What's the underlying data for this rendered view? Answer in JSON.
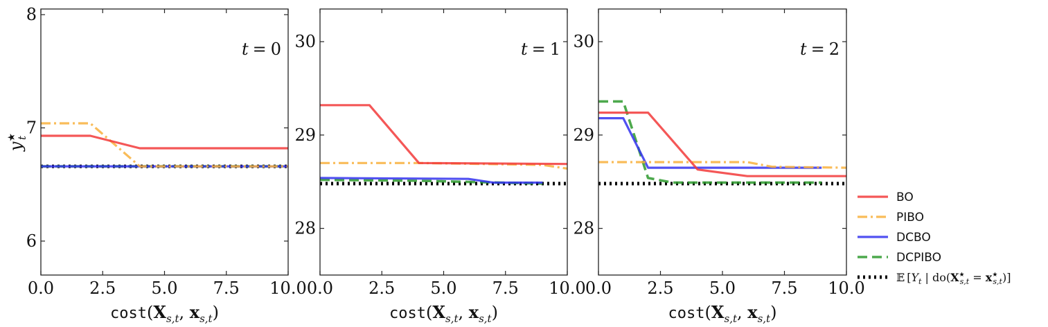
{
  "chart_data": [
    {
      "type": "line",
      "panel_label": "t = 0",
      "xlabel": "cost(X_{s,t}, x_{s,t})",
      "ylabel": "y*_t",
      "xlim": [
        0,
        10
      ],
      "ylim": [
        5.7,
        8.05
      ],
      "xticks": [
        "0.0",
        "2.5",
        "5.0",
        "7.5",
        "10.0"
      ],
      "yticks": [
        6,
        7,
        8
      ],
      "series": [
        {
          "name": "BO",
          "x": [
            0,
            2,
            4,
            10
          ],
          "y": [
            6.93,
            6.93,
            6.82,
            6.82
          ]
        },
        {
          "name": "PIBO",
          "x": [
            0,
            2,
            4,
            10
          ],
          "y": [
            7.04,
            7.04,
            6.66,
            6.66
          ]
        },
        {
          "name": "DCBO",
          "x": [
            0,
            10
          ],
          "y": [
            6.66,
            6.66
          ]
        },
        {
          "name": "DCPIBO",
          "x": [
            0,
            10
          ],
          "y": [
            6.66,
            6.66
          ]
        },
        {
          "name": "E[Y_t | do(X*_{s,t} = x*_{s,t})]",
          "x": [
            0,
            10
          ],
          "y": [
            6.66,
            6.66
          ]
        }
      ]
    },
    {
      "type": "line",
      "panel_label": "t = 1",
      "xlabel": "cost(X_{s,t}, x_{s,t})",
      "xlim": [
        0,
        10
      ],
      "ylim": [
        27.5,
        30.35
      ],
      "xticks": [
        "0.0",
        "2.5",
        "5.0",
        "7.5",
        "10.0"
      ],
      "yticks": [
        28,
        29,
        30
      ],
      "series": [
        {
          "name": "BO",
          "x": [
            0,
            2,
            4,
            10
          ],
          "y": [
            29.32,
            29.32,
            28.7,
            28.69
          ]
        },
        {
          "name": "PIBO",
          "x": [
            0,
            4,
            9,
            10
          ],
          "y": [
            28.7,
            28.7,
            28.68,
            28.64
          ]
        },
        {
          "name": "DCBO",
          "x": [
            0,
            6,
            7,
            9
          ],
          "y": [
            28.54,
            28.53,
            28.49,
            28.49
          ]
        },
        {
          "name": "DCPIBO",
          "x": [
            0,
            4,
            9
          ],
          "y": [
            28.52,
            28.51,
            28.48
          ]
        },
        {
          "name": "E[Y_t | do(X*_{s,t} = x*_{s,t})]",
          "x": [
            0,
            10
          ],
          "y": [
            28.48,
            28.48
          ]
        }
      ]
    },
    {
      "type": "line",
      "panel_label": "t = 2",
      "xlabel": "cost(X_{s,t}, x_{s,t})",
      "xlim": [
        0,
        10
      ],
      "ylim": [
        27.5,
        30.35
      ],
      "xticks": [
        "0.0",
        "2.5",
        "5.0",
        "7.5",
        "10.0"
      ],
      "yticks": [
        28,
        29,
        30
      ],
      "series": [
        {
          "name": "BO",
          "x": [
            0,
            2,
            4,
            6,
            10
          ],
          "y": [
            29.24,
            29.24,
            28.63,
            28.56,
            28.56
          ]
        },
        {
          "name": "PIBO",
          "x": [
            0,
            6,
            7,
            10
          ],
          "y": [
            28.71,
            28.71,
            28.66,
            28.65
          ]
        },
        {
          "name": "DCBO",
          "x": [
            0,
            1,
            2,
            9
          ],
          "y": [
            29.18,
            29.18,
            28.65,
            28.65
          ]
        },
        {
          "name": "DCPIBO",
          "x": [
            0,
            1,
            2,
            3,
            9
          ],
          "y": [
            29.36,
            29.36,
            28.54,
            28.49,
            28.49
          ]
        },
        {
          "name": "E[Y_t | do(X*_{s,t} = x*_{s,t})]",
          "x": [
            0,
            10
          ],
          "y": [
            28.48,
            28.48
          ]
        }
      ]
    }
  ],
  "legend": {
    "placement": "right",
    "entries": [
      {
        "label": "BO",
        "color": "#f23a3a",
        "style": "solid"
      },
      {
        "label": "PIBO",
        "color": "#f8b03c",
        "style": "dashdot"
      },
      {
        "label": "DCBO",
        "color": "#3333ee",
        "style": "solid"
      },
      {
        "label": "DCPIBO",
        "color": "#2e9a2e",
        "style": "dashed"
      },
      {
        "label": "E[Y_t | do(X*_{s,t} = x*_{s,t})]",
        "color": "#000000",
        "style": "dotted"
      }
    ]
  },
  "colors": {
    "BO": "#f23a3a",
    "PIBO": "#f8b03c",
    "DCBO": "#3333ee",
    "DCPIBO": "#2e9a2e",
    "target": "#000000"
  }
}
